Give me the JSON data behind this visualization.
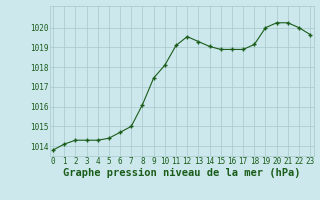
{
  "x": [
    0,
    1,
    2,
    3,
    4,
    5,
    6,
    7,
    8,
    9,
    10,
    11,
    12,
    13,
    14,
    15,
    16,
    17,
    18,
    19,
    20,
    21,
    22,
    23
  ],
  "y": [
    1013.8,
    1014.1,
    1014.3,
    1014.3,
    1014.3,
    1014.4,
    1014.7,
    1015.0,
    1016.1,
    1017.45,
    1018.1,
    1019.1,
    1019.55,
    1019.3,
    1019.05,
    1018.9,
    1018.9,
    1018.9,
    1019.15,
    1020.0,
    1020.25,
    1020.25,
    1020.0,
    1019.65
  ],
  "ylim": [
    1013.5,
    1021.1
  ],
  "xlim": [
    -0.3,
    23.3
  ],
  "yticks": [
    1014,
    1015,
    1016,
    1017,
    1018,
    1019,
    1020
  ],
  "xticks": [
    0,
    1,
    2,
    3,
    4,
    5,
    6,
    7,
    8,
    9,
    10,
    11,
    12,
    13,
    14,
    15,
    16,
    17,
    18,
    19,
    20,
    21,
    22,
    23
  ],
  "line_color": "#1a5c1a",
  "marker_color": "#1a5c1a",
  "bg_color": "#cce8ec",
  "grid_color": "#a8c8cc",
  "xlabel": "Graphe pression niveau de la mer (hPa)",
  "xlabel_color": "#1a5c1a",
  "tick_color": "#1a5c1a",
  "tick_fontsize": 5.5,
  "xlabel_fontsize": 7.5
}
